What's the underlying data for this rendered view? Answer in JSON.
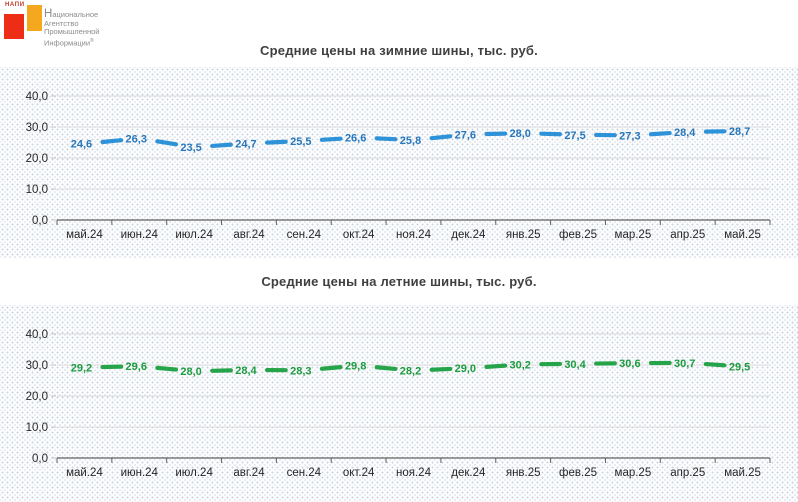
{
  "logo": {
    "wordmark": "НАПИ",
    "lines": [
      "Национальное",
      "Агентство",
      "Промышленной",
      "Информации"
    ],
    "registered_mark": "®",
    "colors": {
      "red": "#ED2D16",
      "yellow": "#F4A81D",
      "text": "#8C8C8C"
    }
  },
  "chart_data": [
    {
      "type": "line",
      "title": "Средние цены на зимние шины, тыс. руб.",
      "categories": [
        "май.24",
        "июн.24",
        "июл.24",
        "авг.24",
        "сен.24",
        "окт.24",
        "ноя.24",
        "дек.24",
        "янв.25",
        "фев.25",
        "мар.25",
        "апр.25",
        "май.25"
      ],
      "values": [
        24.6,
        26.3,
        23.5,
        24.7,
        25.5,
        26.6,
        25.8,
        27.6,
        28.0,
        27.5,
        27.3,
        28.4,
        28.7
      ],
      "value_labels": [
        "24,6",
        "26,3",
        "23,5",
        "24,7",
        "25,5",
        "26,6",
        "25,8",
        "27,6",
        "28,0",
        "27,5",
        "27,3",
        "28,4",
        "28,7"
      ],
      "line_color": "#2E92D8",
      "label_color": "#2677BC",
      "line_style": "dashed",
      "ylim": [
        0,
        45
      ],
      "y_ticks": [
        40,
        30,
        20,
        10,
        0
      ],
      "y_tick_labels": [
        "40,0",
        "30,0",
        "20,0",
        "10,0",
        "0,0"
      ],
      "grid": true,
      "legend": "none"
    },
    {
      "type": "line",
      "title": "Средние цены на летние шины, тыс. руб.",
      "categories": [
        "май.24",
        "июн.24",
        "июл.24",
        "авг.24",
        "сен.24",
        "окт.24",
        "ноя.24",
        "дек.24",
        "янв.25",
        "фев.25",
        "мар.25",
        "апр.25",
        "май.25"
      ],
      "values": [
        29.2,
        29.6,
        28.0,
        28.4,
        28.3,
        29.8,
        28.2,
        29.0,
        30.2,
        30.4,
        30.6,
        30.7,
        29.5
      ],
      "value_labels": [
        "29,2",
        "29,6",
        "28,0",
        "28,4",
        "28,3",
        "29,8",
        "28,2",
        "29,0",
        "30,2",
        "30,4",
        "30,6",
        "30,7",
        "29,5"
      ],
      "line_color": "#25A449",
      "label_color": "#1C9B3F",
      "line_style": "dashed",
      "ylim": [
        0,
        45
      ],
      "y_ticks": [
        40,
        30,
        20,
        10,
        0
      ],
      "y_tick_labels": [
        "40,0",
        "30,0",
        "20,0",
        "10,0",
        "0,0"
      ],
      "grid": true,
      "legend": "none"
    }
  ],
  "axis_style": {
    "grid_color": "#DADADA",
    "axis_color": "#616161",
    "tick_text_color": "#262626"
  }
}
